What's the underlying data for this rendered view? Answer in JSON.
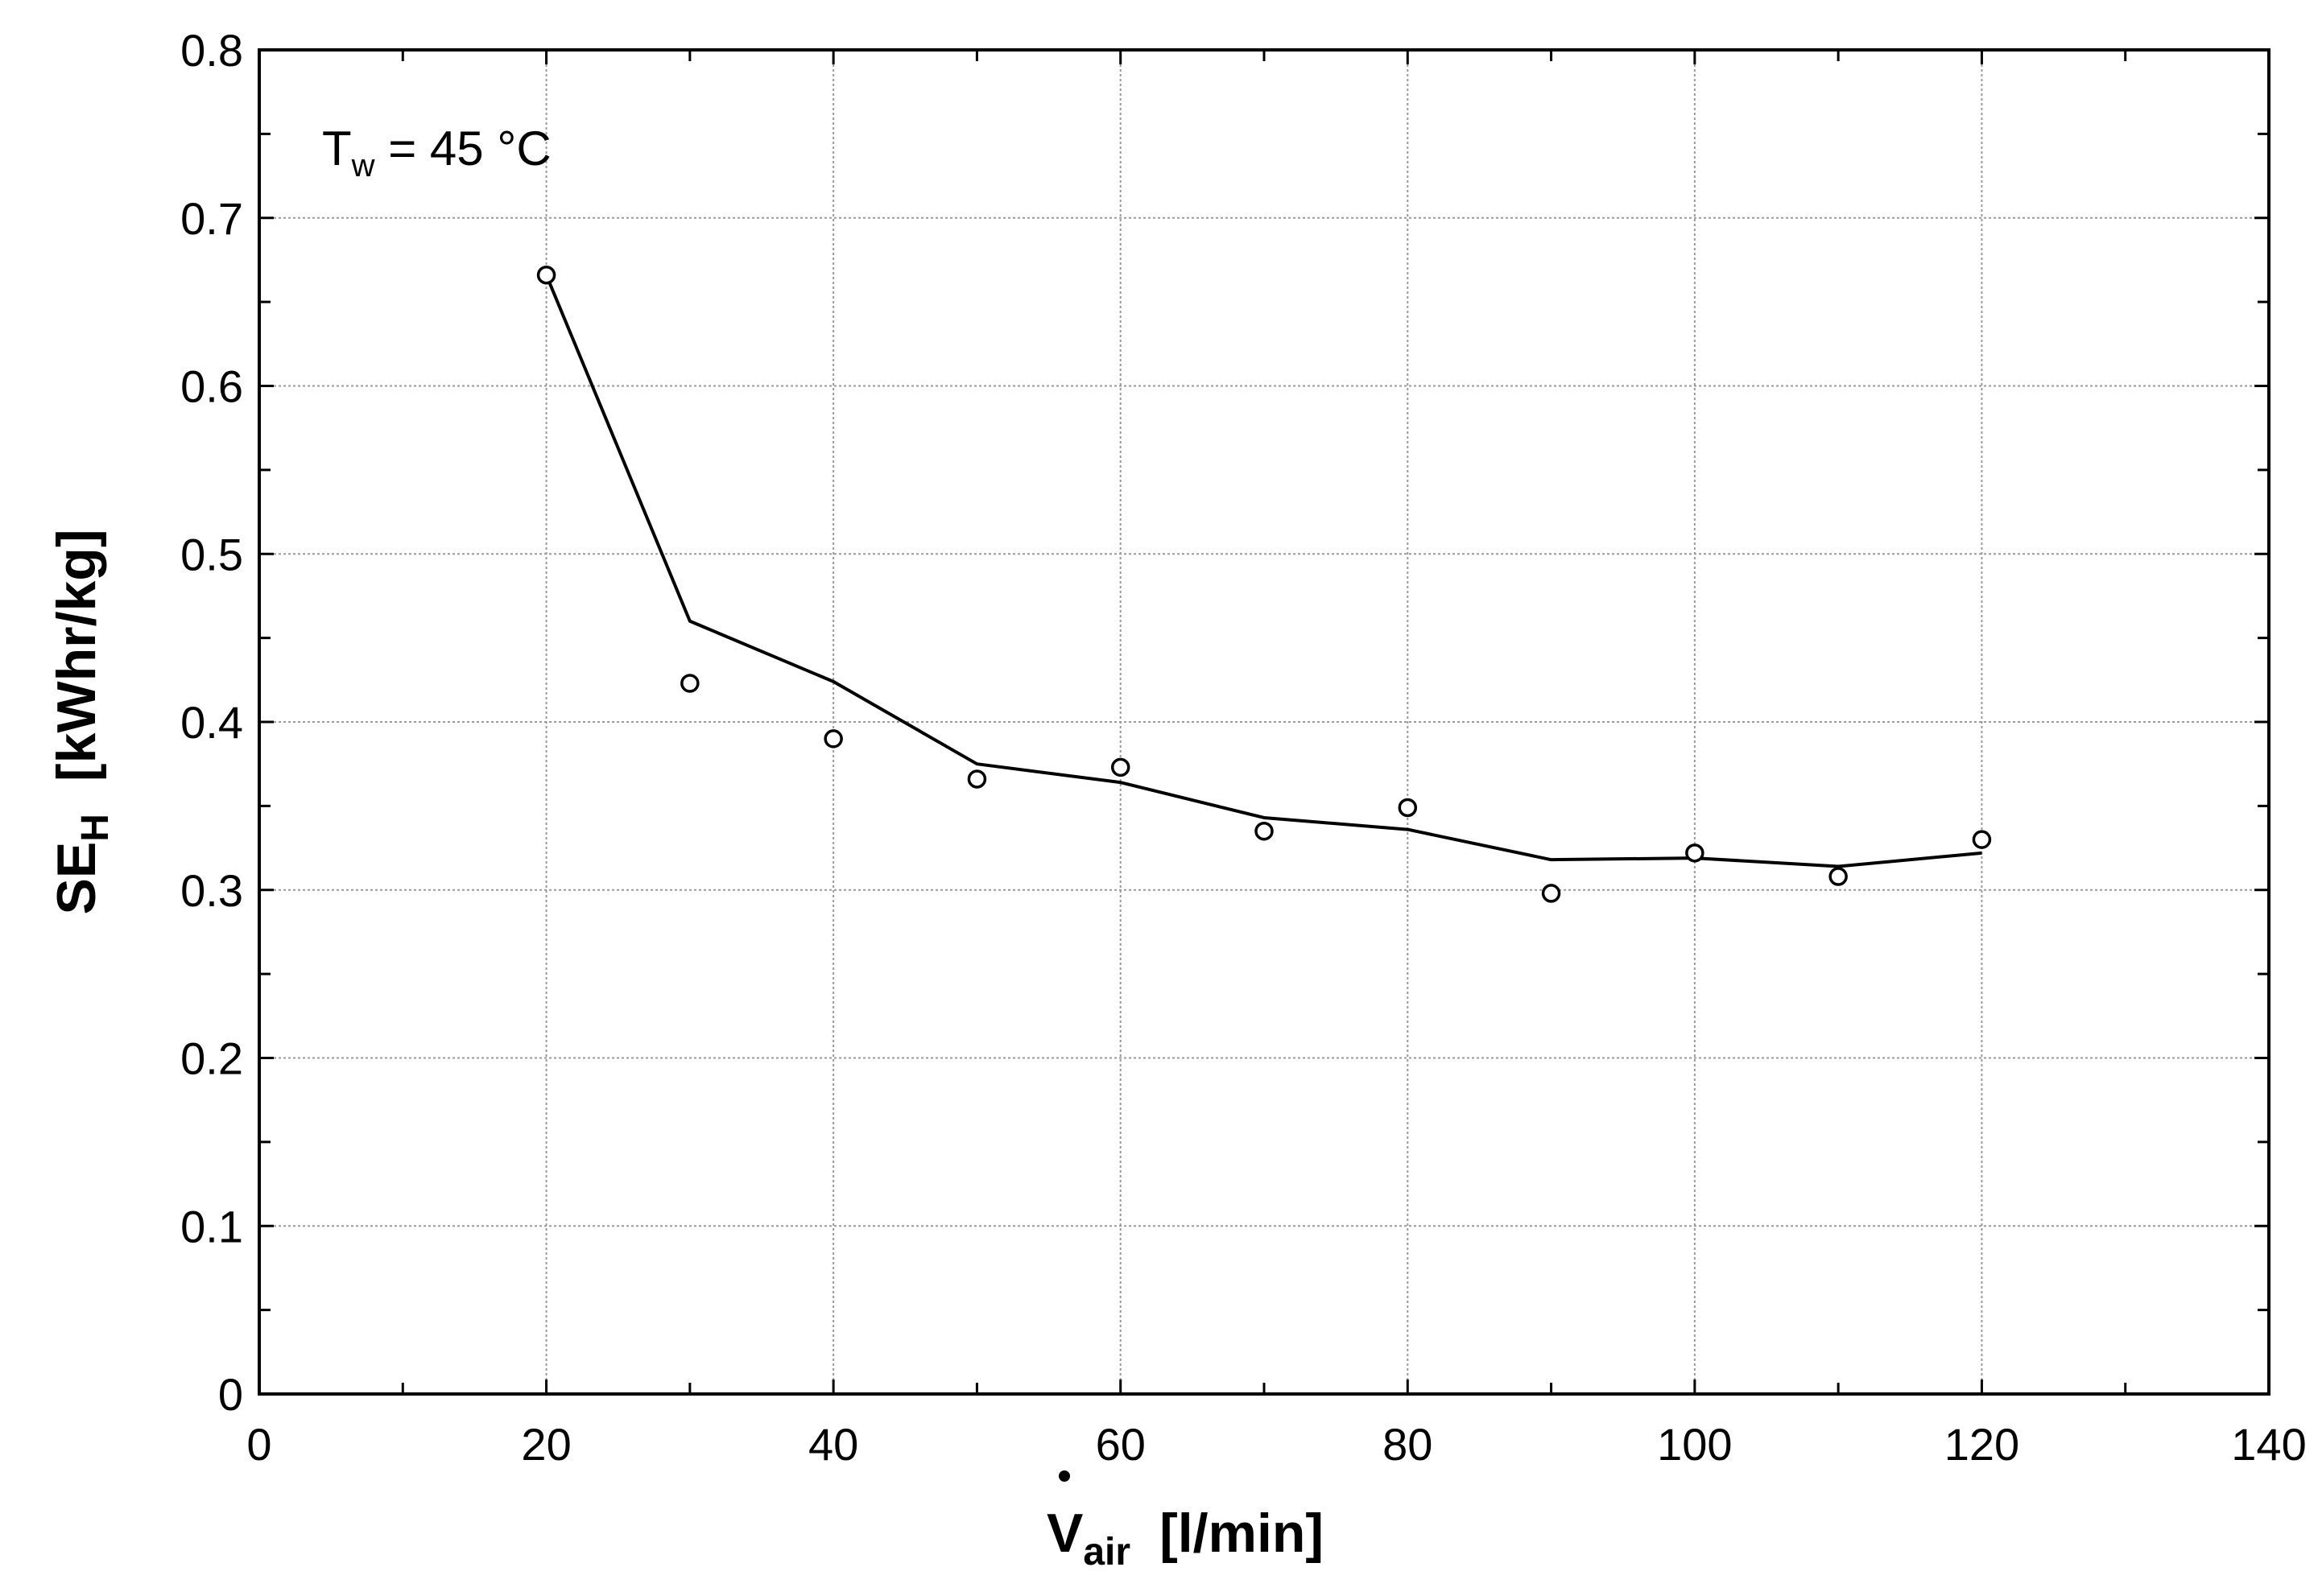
{
  "chart_data": {
    "type": "scatter",
    "title": "",
    "annotation": {
      "base": "T",
      "sub": "w",
      "rest": " = 45 °C"
    },
    "xlabel": {
      "base": "V",
      "sub": "air",
      "unit": "[l/min]",
      "dot": true
    },
    "ylabel": {
      "base": "SE",
      "sub": "H",
      "unit": "[kWhr/kg]"
    },
    "xlim": [
      0,
      140
    ],
    "ylim": [
      0,
      0.8
    ],
    "xticks": [
      0,
      20,
      40,
      60,
      80,
      100,
      120,
      140
    ],
    "xtick_labels": [
      "0",
      "20",
      "40",
      "60",
      "80",
      "100",
      "120",
      "140"
    ],
    "yticks": [
      0,
      0.1,
      0.2,
      0.3,
      0.4,
      0.5,
      0.6,
      0.7,
      0.8
    ],
    "ytick_labels": [
      "0",
      "0.1",
      "0.2",
      "0.3",
      "0.4",
      "0.5",
      "0.6",
      "0.7",
      "0.8"
    ],
    "grid": true,
    "series": [
      {
        "kind": "markers",
        "marker": "open-circle",
        "x": [
          20,
          30,
          40,
          50,
          60,
          70,
          80,
          90,
          100,
          110,
          120
        ],
        "y": [
          0.666,
          0.423,
          0.39,
          0.366,
          0.373,
          0.335,
          0.349,
          0.298,
          0.322,
          0.308,
          0.33
        ]
      },
      {
        "kind": "line",
        "x": [
          20,
          30,
          40,
          50,
          60,
          70,
          80,
          90,
          100,
          110,
          120
        ],
        "y": [
          0.666,
          0.46,
          0.424,
          0.375,
          0.364,
          0.343,
          0.336,
          0.318,
          0.319,
          0.314,
          0.322
        ]
      }
    ],
    "colors": {
      "line": "#000000",
      "grid": "#9a9a9a",
      "frame": "#000000"
    }
  }
}
